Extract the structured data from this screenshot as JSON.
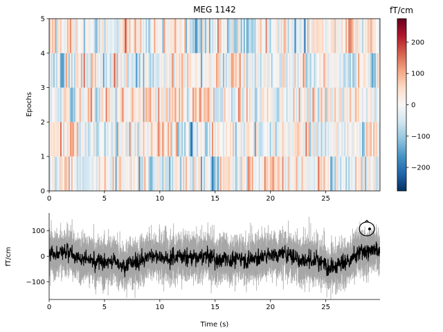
{
  "chart_data": [
    {
      "type": "heatmap",
      "title": "MEG 1142",
      "xlabel": "",
      "ylabel": "Epochs",
      "xlim": [
        0,
        29.9
      ],
      "ylim": [
        0,
        5
      ],
      "xticks": [
        0,
        5,
        10,
        15,
        20,
        25
      ],
      "yticks": [
        0,
        1,
        2,
        3,
        4,
        5
      ],
      "rows": 5,
      "colormap": "RdBu_r",
      "colorbar": {
        "label": "fT/cm",
        "range": [
          -275,
          275
        ],
        "ticks": [
          -200,
          -100,
          0,
          100,
          200
        ],
        "tick_labels": [
          "−200",
          "−100",
          "0",
          "100",
          "200"
        ]
      }
    },
    {
      "type": "line",
      "title": "",
      "xlabel": "Time (s)",
      "ylabel": "fT/cm",
      "xlim": [
        0,
        29.9
      ],
      "ylim": [
        -170,
        170
      ],
      "xticks": [
        0,
        5,
        10,
        15,
        20,
        25
      ],
      "yticks": [
        -100,
        0,
        100
      ],
      "ytick_labels": [
        "−100",
        "0",
        "100"
      ],
      "series": [
        {
          "role": "mean",
          "color": "#000000"
        },
        {
          "role": "spread",
          "color": "#a6a6a6"
        }
      ],
      "sensor_inset": {
        "shape": "head-outline-with-sensor-dot"
      }
    }
  ]
}
